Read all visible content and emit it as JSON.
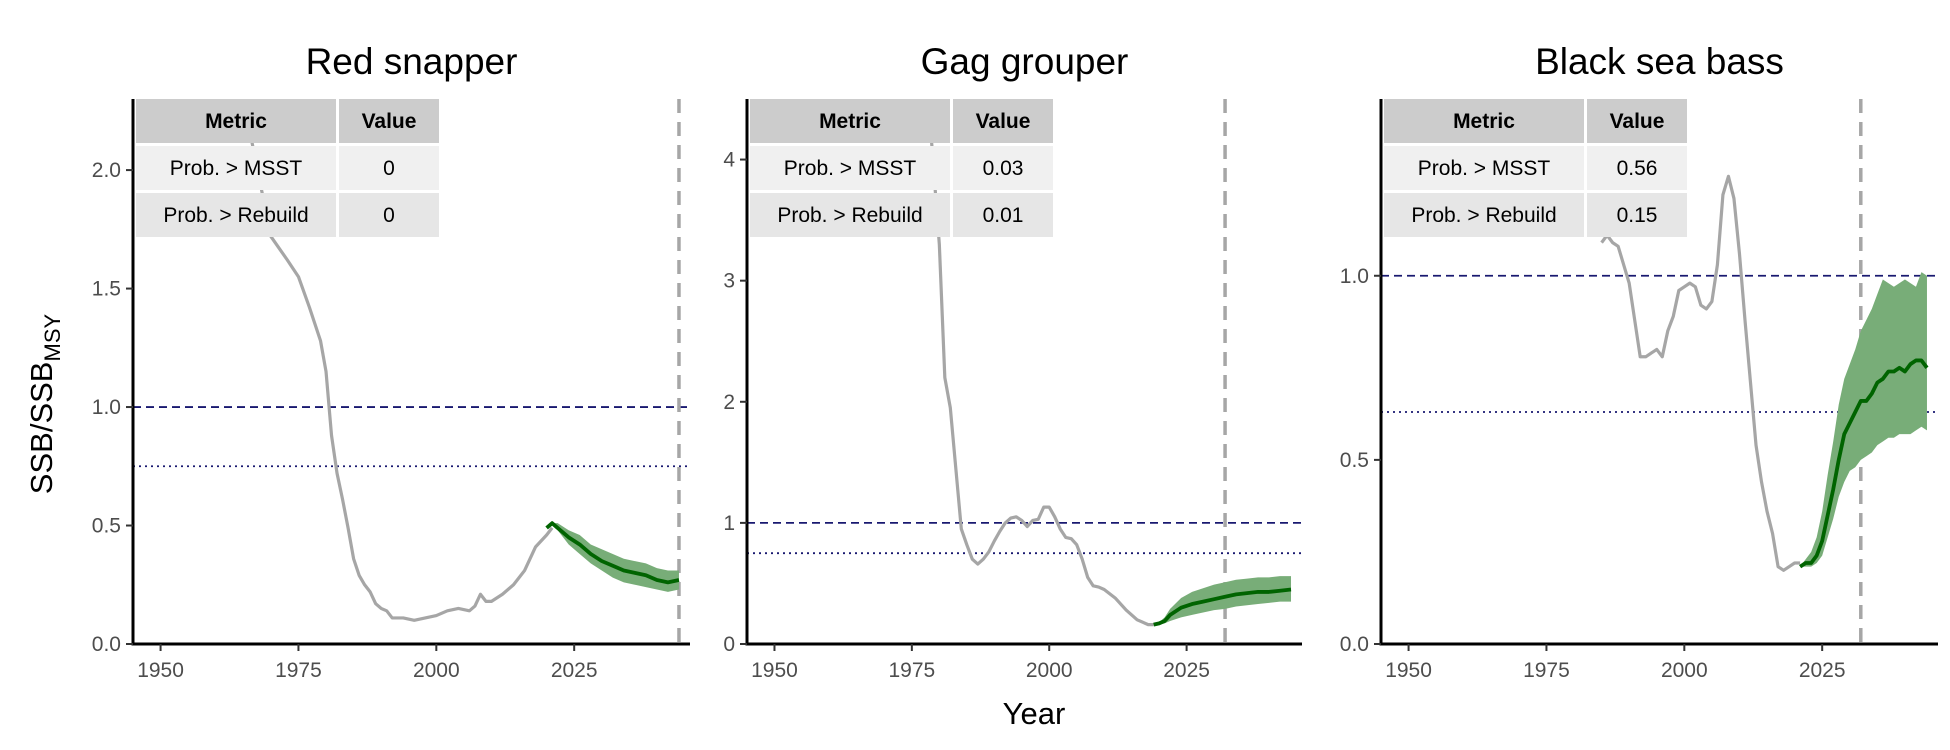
{
  "figure": {
    "xlabel": "Year",
    "ylabel_main": "SSB/SSB",
    "ylabel_sub": "MSY"
  },
  "chart_data": [
    {
      "type": "line",
      "title": "Red snapper",
      "xlim": [
        1945,
        2046
      ],
      "ylim": [
        0,
        2.3
      ],
      "xticks": [
        1950,
        1975,
        2000,
        2025
      ],
      "yticks": [
        0.0,
        0.5,
        1.0,
        1.5,
        2.0
      ],
      "ytick_labels": [
        "0.0",
        "0.5",
        "1.0",
        "1.5",
        "2.0"
      ],
      "msst_line": 1.0,
      "rebuild_line": 0.75,
      "projection_end_year": 2044,
      "historical": {
        "x": [
          1950,
          1955,
          1960,
          1965,
          1970,
          1973,
          1975,
          1977,
          1979,
          1980,
          1981,
          1982,
          1983,
          1984,
          1985,
          1986,
          1987,
          1988,
          1989,
          1990,
          1991,
          1992,
          1994,
          1996,
          1998,
          2000,
          2002,
          2004,
          2006,
          2007,
          2008,
          2009,
          2010,
          2012,
          2014,
          2016,
          2018,
          2020,
          2021
        ],
        "y": [
          2.3,
          2.3,
          2.3,
          2.3,
          1.72,
          1.62,
          1.55,
          1.42,
          1.28,
          1.15,
          0.88,
          0.72,
          0.61,
          0.49,
          0.36,
          0.29,
          0.25,
          0.22,
          0.17,
          0.15,
          0.14,
          0.11,
          0.11,
          0.1,
          0.11,
          0.12,
          0.14,
          0.15,
          0.14,
          0.16,
          0.21,
          0.18,
          0.18,
          0.21,
          0.25,
          0.31,
          0.41,
          0.46,
          0.49
        ]
      },
      "projection": {
        "x": [
          2020,
          2021,
          2022,
          2024,
          2026,
          2028,
          2030,
          2032,
          2034,
          2036,
          2038,
          2040,
          2042,
          2044
        ],
        "y": [
          0.49,
          0.51,
          0.49,
          0.45,
          0.42,
          0.38,
          0.35,
          0.33,
          0.31,
          0.3,
          0.29,
          0.27,
          0.26,
          0.27
        ],
        "lower": [
          0.49,
          0.5,
          0.48,
          0.42,
          0.38,
          0.34,
          0.31,
          0.28,
          0.26,
          0.25,
          0.24,
          0.23,
          0.22,
          0.23
        ],
        "upper": [
          0.49,
          0.51,
          0.51,
          0.48,
          0.46,
          0.42,
          0.4,
          0.38,
          0.36,
          0.35,
          0.34,
          0.32,
          0.31,
          0.31
        ]
      },
      "table": {
        "headers": [
          "Metric",
          "Value"
        ],
        "rows": [
          [
            "Prob. > MSST",
            "0"
          ],
          [
            "Prob. > Rebuild",
            "0"
          ]
        ]
      }
    },
    {
      "type": "line",
      "title": "Gag grouper",
      "xlim": [
        1945,
        2046
      ],
      "ylim": [
        0,
        4.5
      ],
      "xticks": [
        1950,
        1975,
        2000,
        2025
      ],
      "yticks": [
        0,
        1,
        2,
        3,
        4
      ],
      "ytick_labels": [
        "0",
        "1",
        "2",
        "3",
        "4"
      ],
      "msst_line": 1.0,
      "rebuild_line": 0.75,
      "projection_end_year": 2032,
      "historical": {
        "x": [
          1978,
          1979,
          1980,
          1981,
          1982,
          1983,
          1984,
          1985,
          1986,
          1987,
          1988,
          1989,
          1990,
          1991,
          1992,
          1993,
          1994,
          1995,
          1996,
          1997,
          1998,
          1999,
          2000,
          2001,
          2002,
          2003,
          2004,
          2005,
          2006,
          2007,
          2008,
          2009,
          2010,
          2012,
          2014,
          2016,
          2018,
          2019
        ],
        "y": [
          4.5,
          3.9,
          3.3,
          2.2,
          1.95,
          1.45,
          0.95,
          0.82,
          0.7,
          0.66,
          0.7,
          0.76,
          0.85,
          0.93,
          1.0,
          1.04,
          1.05,
          1.02,
          0.97,
          1.02,
          1.03,
          1.13,
          1.13,
          1.05,
          0.95,
          0.88,
          0.87,
          0.82,
          0.7,
          0.55,
          0.48,
          0.47,
          0.45,
          0.38,
          0.28,
          0.2,
          0.16,
          0.16
        ]
      },
      "projection": {
        "x": [
          2019,
          2020,
          2021,
          2022,
          2024,
          2026,
          2028,
          2030,
          2032,
          2034,
          2036,
          2038,
          2040,
          2042,
          2044
        ],
        "y": [
          0.16,
          0.17,
          0.19,
          0.24,
          0.3,
          0.33,
          0.35,
          0.37,
          0.39,
          0.41,
          0.42,
          0.43,
          0.43,
          0.44,
          0.45
        ],
        "lower": [
          0.16,
          0.16,
          0.17,
          0.19,
          0.22,
          0.24,
          0.26,
          0.28,
          0.29,
          0.31,
          0.32,
          0.33,
          0.34,
          0.35,
          0.35
        ],
        "upper": [
          0.16,
          0.18,
          0.22,
          0.29,
          0.38,
          0.43,
          0.46,
          0.49,
          0.51,
          0.53,
          0.54,
          0.55,
          0.55,
          0.56,
          0.56
        ]
      },
      "table": {
        "headers": [
          "Metric",
          "Value"
        ],
        "rows": [
          [
            "Prob. > MSST",
            "0.03"
          ],
          [
            "Prob. > Rebuild",
            "0.01"
          ]
        ]
      }
    },
    {
      "type": "line",
      "title": "Black sea bass",
      "xlim": [
        1945,
        2046
      ],
      "ylim": [
        0,
        1.48
      ],
      "xticks": [
        1950,
        1975,
        2000,
        2025
      ],
      "yticks": [
        0.0,
        0.5,
        1.0
      ],
      "ytick_labels": [
        "0.0",
        "0.5",
        "1.0"
      ],
      "msst_line": 1.0,
      "rebuild_line": 0.63,
      "projection_end_year": 2032,
      "historical": {
        "x": [
          1985,
          1986,
          1987,
          1988,
          1989,
          1990,
          1991,
          1992,
          1993,
          1994,
          1995,
          1996,
          1997,
          1998,
          1999,
          2000,
          2001,
          2002,
          2003,
          2004,
          2005,
          2006,
          2007,
          2008,
          2009,
          2010,
          2011,
          2012,
          2013,
          2014,
          2015,
          2016,
          2017,
          2018,
          2019,
          2020,
          2021
        ],
        "y": [
          1.09,
          1.11,
          1.09,
          1.08,
          1.03,
          0.98,
          0.88,
          0.78,
          0.78,
          0.79,
          0.8,
          0.78,
          0.85,
          0.89,
          0.96,
          0.97,
          0.98,
          0.97,
          0.92,
          0.91,
          0.93,
          1.03,
          1.22,
          1.27,
          1.21,
          1.06,
          0.88,
          0.71,
          0.54,
          0.44,
          0.36,
          0.3,
          0.21,
          0.2,
          0.21,
          0.22,
          0.22
        ]
      },
      "projection": {
        "x": [
          2021,
          2022,
          2023,
          2024,
          2025,
          2026,
          2027,
          2028,
          2029,
          2030,
          2031,
          2032,
          2033,
          2034,
          2035,
          2036,
          2037,
          2038,
          2039,
          2040,
          2041,
          2042,
          2043,
          2044
        ],
        "y": [
          0.21,
          0.22,
          0.22,
          0.24,
          0.28,
          0.35,
          0.42,
          0.5,
          0.57,
          0.6,
          0.63,
          0.66,
          0.66,
          0.68,
          0.71,
          0.72,
          0.74,
          0.74,
          0.75,
          0.74,
          0.76,
          0.77,
          0.77,
          0.75
        ],
        "lower": [
          0.21,
          0.21,
          0.21,
          0.22,
          0.24,
          0.29,
          0.34,
          0.4,
          0.44,
          0.47,
          0.48,
          0.5,
          0.51,
          0.52,
          0.54,
          0.55,
          0.56,
          0.56,
          0.57,
          0.57,
          0.57,
          0.58,
          0.59,
          0.58
        ],
        "upper": [
          0.21,
          0.23,
          0.25,
          0.29,
          0.36,
          0.46,
          0.55,
          0.65,
          0.72,
          0.76,
          0.8,
          0.85,
          0.88,
          0.91,
          0.95,
          0.99,
          0.98,
          0.97,
          0.98,
          0.99,
          0.98,
          0.97,
          1.01,
          1.0
        ]
      },
      "table": {
        "headers": [
          "Metric",
          "Value"
        ],
        "rows": [
          [
            "Prob. > MSST",
            "0.56"
          ],
          [
            "Prob. > Rebuild",
            "0.15"
          ]
        ]
      }
    }
  ],
  "colors": {
    "historical": "#a6a6a6",
    "projection_line": "#006400",
    "projection_band": "#78ad78",
    "msst_line": "#191970",
    "rebuild_line": "#191970",
    "end_marker": "#a6a6a6",
    "axis": "#000000",
    "table_header_bg": "#cccccc",
    "table_row_odd_bg": "#f0f0f0",
    "table_row_even_bg": "#e6e6e6"
  }
}
